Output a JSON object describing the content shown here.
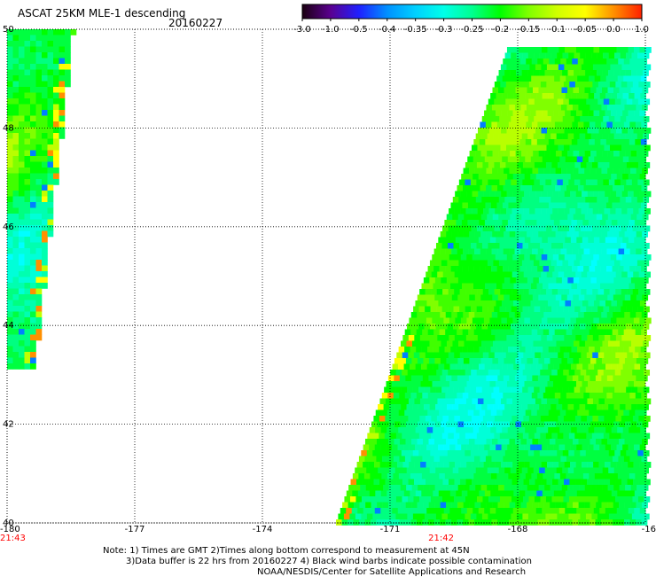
{
  "title": "ASCAT 25KM MLE-1 descending",
  "date": "20160227",
  "colorbar": {
    "tick_labels": [
      "-3.0",
      "-1.0",
      "-0.5",
      "-0.4",
      "-0.35",
      "-0.3",
      "-0.25",
      "-0.2",
      "-0.15",
      "-0.1",
      "-0.05",
      "0.0",
      "1.0"
    ],
    "colors": [
      "#1a0010",
      "#5a0090",
      "#2020ff",
      "#0090ff",
      "#00d0ff",
      "#00ffe8",
      "#00ff90",
      "#00ff00",
      "#80ff00",
      "#d0ff00",
      "#ffff00",
      "#ff9000",
      "#ff2000"
    ]
  },
  "map": {
    "lat_labels": [
      "50",
      "48",
      "46",
      "44",
      "42",
      "40"
    ],
    "lon_labels": [
      "-180",
      "-177",
      "-174",
      "-171",
      "-168",
      "-16"
    ],
    "lat_range": [
      40,
      50
    ],
    "lon_range": [
      -180,
      -165
    ],
    "grid": "dotted",
    "time_labels": [
      {
        "text": "21:43",
        "lon": -180
      },
      {
        "text": "21:42",
        "lon": -169.8
      }
    ],
    "time_color": "#ff0000"
  },
  "swaths": [
    {
      "name": "west-swath",
      "top_edge_lon": -178.5,
      "top_left_lon": -180,
      "bottom_lat": 43.2
    },
    {
      "name": "east-swath",
      "top_edge_lon": -168.1,
      "bottom_edge_lon": -172.3,
      "bottom_lat": 40
    }
  ],
  "notes": {
    "line1": "Note: 1) Times are GMT 2)Times along bottom correspond to measurement at 45N",
    "line2": "3)Data buffer is 22 hrs from 20160227 4) Black wind barbs indicate possible contamination",
    "line3": "NOAA/NESDIS/Center for Satellite Applications and Research"
  }
}
